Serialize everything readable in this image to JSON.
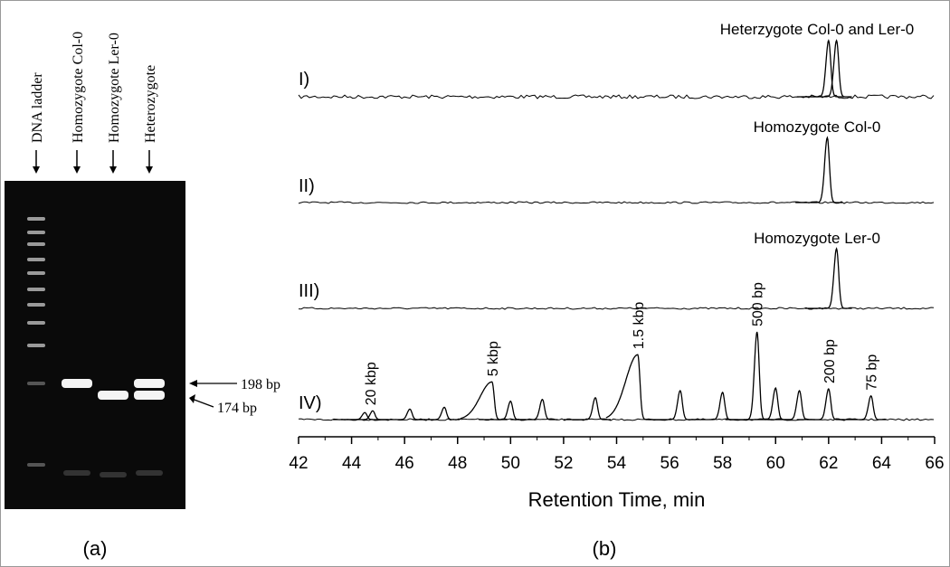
{
  "gel": {
    "lanes": [
      "DNA ladder",
      "Homozygote Col-0",
      "Homozygote Ler-0",
      "Heterozygote"
    ],
    "band_labels": [
      "198 bp",
      "174 bp"
    ]
  },
  "panel_labels": [
    "(a)",
    "(b)"
  ],
  "chart_data": {
    "type": "line",
    "xlabel": "Retention Time, min",
    "xlim": [
      42,
      66
    ],
    "xticks": [
      42,
      44,
      46,
      48,
      50,
      52,
      54,
      56,
      58,
      60,
      62,
      64,
      66
    ],
    "series": [
      {
        "name": "I)",
        "color": "#000000",
        "annotation": "Heterzygote Col-0 and Ler-0",
        "peaks_x": [
          62.0,
          62.3
        ],
        "peaks_height": [
          64,
          64
        ]
      },
      {
        "name": "II)",
        "color": "#000000",
        "annotation": "Homozygote Col-0",
        "peaks_x": [
          61.95
        ],
        "peaks_height": [
          74
        ]
      },
      {
        "name": "III)",
        "color": "#000000",
        "annotation": "Homozygote Ler-0",
        "peaks_x": [
          62.3
        ],
        "peaks_height": [
          68
        ]
      },
      {
        "name": "IV)",
        "color": "#000000",
        "peaks_x": [
          44.5,
          44.8,
          46.2,
          47.5,
          49.3,
          50.0,
          51.2,
          53.2,
          54.8,
          56.4,
          58.0,
          59.3,
          60.0,
          60.9,
          62.0,
          63.6
        ],
        "peaks_height": [
          8,
          10,
          12,
          14,
          43,
          21,
          23,
          25,
          74,
          33,
          31,
          100,
          36,
          33,
          35,
          27
        ],
        "peak_labels": [
          {
            "text": "20 kbp",
            "x": 44.7
          },
          {
            "text": "5 kbp",
            "x": 49.3
          },
          {
            "text": "1.5 kbp",
            "x": 54.8
          },
          {
            "text": "500 bp",
            "x": 59.3
          },
          {
            "text": "200 bp",
            "x": 62.0
          },
          {
            "text": "75 bp",
            "x": 63.6
          }
        ]
      }
    ]
  }
}
